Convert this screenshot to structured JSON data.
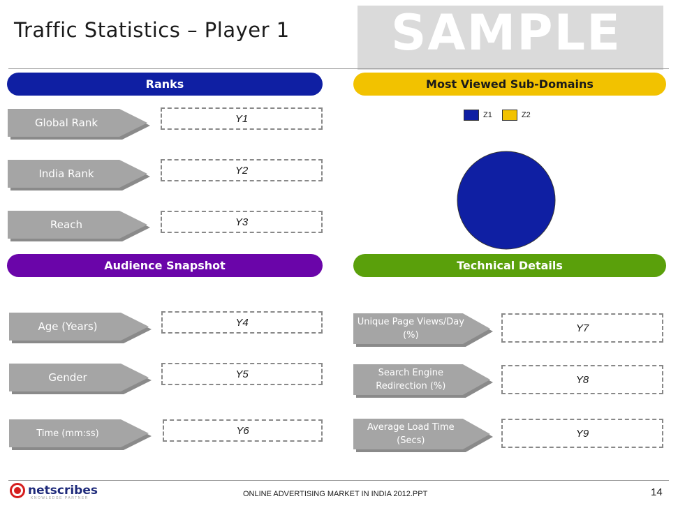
{
  "slide": {
    "title": "Traffic Statistics – Player 1",
    "watermark": "SAMPLE",
    "footer": "ONLINE ADVERTISING MARKET IN INDIA 2012.PPT",
    "page_number": "14",
    "logo": {
      "name": "netscribes",
      "tagline": "KNOWLEDGE PARTNER"
    }
  },
  "sections": {
    "ranks": "Ranks",
    "most_viewed": "Most Viewed Sub-Domains",
    "audience": "Audience Snapshot",
    "technical": "Technical Details"
  },
  "ranks": [
    {
      "label": "Global Rank",
      "value": "Y1"
    },
    {
      "label": "India Rank",
      "value": "Y2"
    },
    {
      "label": "Reach",
      "value": "Y3"
    }
  ],
  "audience": [
    {
      "label": "Age (Years)",
      "value": "Y4"
    },
    {
      "label": "Gender",
      "value": "Y5"
    },
    {
      "label": "Time (mm:ss)",
      "value": "Y6"
    }
  ],
  "technical": [
    {
      "label": "Unique Page Views/Day (%)",
      "value": "Y7"
    },
    {
      "label": "Search Engine Redirection (%)",
      "value": "Y8"
    },
    {
      "label": "Average Load Time (Secs)",
      "value": "Y9"
    }
  ],
  "colors": {
    "ranks": "#0f1fa3",
    "most_viewed": "#f2c200",
    "audience": "#6a05a9",
    "technical": "#5aa00b",
    "arrow": "#a5a5a5"
  },
  "chart_data": {
    "type": "pie",
    "categories": [
      "Z1",
      "Z2"
    ],
    "values": [
      100,
      0
    ],
    "colors": [
      "#0f1fa3",
      "#f2c200"
    ],
    "legend": "top"
  }
}
